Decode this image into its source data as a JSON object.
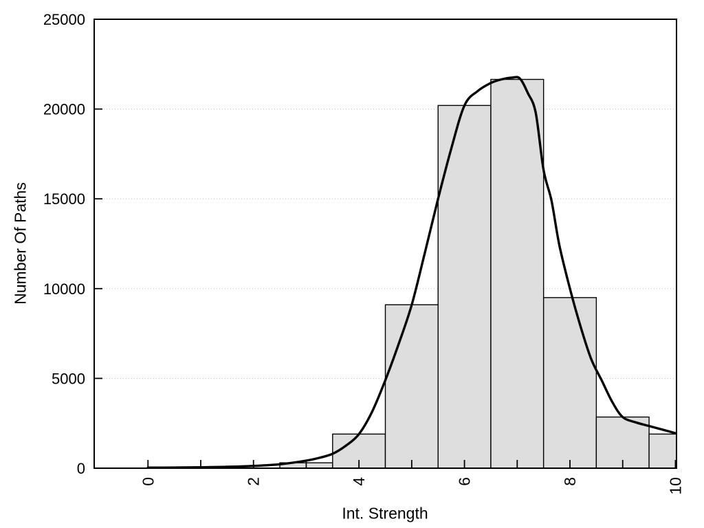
{
  "chart_data": {
    "type": "histogram",
    "title": "",
    "xlabel": "Int. Strength",
    "ylabel": "Number Of Paths",
    "xlim": [
      -1.02,
      10.02
    ],
    "ylim": [
      0,
      25000
    ],
    "x_ticks": [
      0,
      1,
      2,
      3,
      4,
      5,
      6,
      7,
      8,
      9,
      10
    ],
    "x_labeled_ticks": [
      0,
      2,
      4,
      6,
      8,
      10
    ],
    "x_tick_labels": [
      "0",
      "2",
      "4",
      "6",
      "8",
      "10"
    ],
    "y_ticks": [
      0,
      5000,
      10000,
      15000,
      20000,
      25000
    ],
    "y_tick_labels": [
      "0",
      "5000",
      "10000",
      "15000",
      "20000",
      "25000"
    ],
    "y_gridlines": [
      5000,
      10000,
      15000,
      20000
    ],
    "grid_on": true,
    "legend": "none",
    "bars": {
      "bin_edges": [
        2.5,
        3.5,
        4.5,
        5.5,
        6.5,
        7.5,
        8.5,
        9.5,
        10.5
      ],
      "counts": [
        300,
        1900,
        9100,
        20200,
        21650,
        9500,
        2850,
        1900
      ]
    },
    "density_curve": {
      "points": [
        [
          0,
          30
        ],
        [
          0.5,
          35
        ],
        [
          1,
          50
        ],
        [
          1.5,
          75
        ],
        [
          2,
          125
        ],
        [
          2.5,
          220
        ],
        [
          3,
          420
        ],
        [
          3.25,
          580
        ],
        [
          3.5,
          800
        ],
        [
          3.75,
          1250
        ],
        [
          4,
          1900
        ],
        [
          4.25,
          3150
        ],
        [
          4.5,
          4900
        ],
        [
          4.75,
          6900
        ],
        [
          5,
          9100
        ],
        [
          5.25,
          12000
        ],
        [
          5.5,
          15000
        ],
        [
          5.75,
          17800
        ],
        [
          6,
          20200
        ],
        [
          6.25,
          21000
        ],
        [
          6.5,
          21450
        ],
        [
          6.7,
          21650
        ],
        [
          6.9,
          21750
        ],
        [
          7.05,
          21700
        ],
        [
          7.2,
          20900
        ],
        [
          7.35,
          19800
        ],
        [
          7.5,
          16600
        ],
        [
          7.65,
          14900
        ],
        [
          7.8,
          12400
        ],
        [
          8,
          10000
        ],
        [
          8.2,
          7900
        ],
        [
          8.4,
          6100
        ],
        [
          8.6,
          4900
        ],
        [
          8.8,
          3700
        ],
        [
          9,
          2850
        ],
        [
          9.25,
          2550
        ],
        [
          9.5,
          2350
        ],
        [
          9.75,
          2150
        ],
        [
          10,
          1950
        ]
      ]
    },
    "colors": {
      "bar_fill": "#DEDEDE",
      "bar_stroke": "#000000",
      "curve": "#000000",
      "grid": "#BFBFBF",
      "axis": "#000000",
      "background": "#FFFFFF"
    }
  }
}
